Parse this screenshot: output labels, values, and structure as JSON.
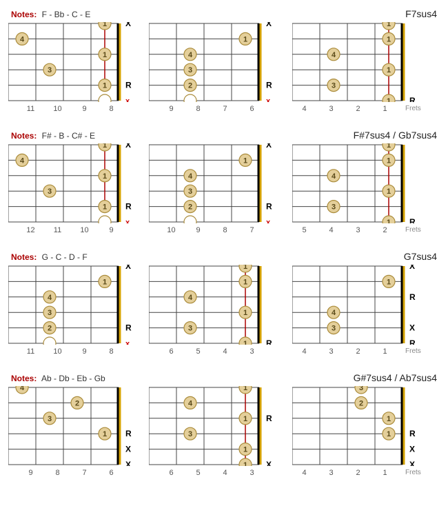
{
  "layout": {
    "grid": {
      "cols": 4,
      "strings": 6,
      "diagram_width": 160,
      "diagram_height": 112,
      "annotation_col_width": 22
    },
    "colors": {
      "line": "#444444",
      "nut": "#d4a200",
      "barre": "#aa0000",
      "dot_fill": "#e4cf9a",
      "dot_stroke": "#aa8b3a",
      "open_fill": "#ffffff",
      "text": "#333333",
      "mute_red": "#cc0000",
      "mute_black": "#000000",
      "root_black": "#000000"
    }
  },
  "frets_label": "Frets",
  "notes_prefix": "Notes:",
  "rows": [
    {
      "notes": "F - Bb - C - E",
      "chord": "F7sus4",
      "diagrams": [
        {
          "frets": [
            11,
            10,
            9,
            8
          ],
          "barre": {
            "fret": 8,
            "from": 1,
            "to": 5
          },
          "dots": [
            {
              "string": 1,
              "fret": 8,
              "label": "1"
            },
            {
              "string": 2,
              "fret": 11,
              "label": "4"
            },
            {
              "string": 3,
              "fret": 8,
              "label": "1"
            },
            {
              "string": 4,
              "fret": 10,
              "label": "3"
            },
            {
              "string": 5,
              "fret": 8,
              "label": "1"
            },
            {
              "string": 6,
              "fret": 8,
              "label": "",
              "open": true
            }
          ],
          "marks": [
            {
              "string": 1,
              "type": "X",
              "color": "black"
            },
            {
              "string": 5,
              "type": "R",
              "color": "black"
            },
            {
              "string": 6,
              "type": "x",
              "color": "red"
            }
          ]
        },
        {
          "frets": [
            9,
            8,
            7,
            6
          ],
          "dots": [
            {
              "string": 2,
              "fret": 6,
              "label": "1"
            },
            {
              "string": 3,
              "fret": 8,
              "label": "4"
            },
            {
              "string": 4,
              "fret": 8,
              "label": "3"
            },
            {
              "string": 5,
              "fret": 8,
              "label": "2"
            },
            {
              "string": 6,
              "fret": 8,
              "label": "",
              "open": true
            }
          ],
          "marks": [
            {
              "string": 1,
              "type": "X",
              "color": "black"
            },
            {
              "string": 5,
              "type": "R",
              "color": "black"
            },
            {
              "string": 6,
              "type": "x",
              "color": "red"
            }
          ]
        },
        {
          "frets": [
            4,
            3,
            2,
            1
          ],
          "barre": {
            "fret": 1,
            "from": 1,
            "to": 6
          },
          "dots": [
            {
              "string": 1,
              "fret": 1,
              "label": "1"
            },
            {
              "string": 2,
              "fret": 1,
              "label": "1"
            },
            {
              "string": 3,
              "fret": 3,
              "label": "4"
            },
            {
              "string": 4,
              "fret": 1,
              "label": "1"
            },
            {
              "string": 5,
              "fret": 3,
              "label": "3"
            },
            {
              "string": 6,
              "fret": 1,
              "label": "1"
            }
          ],
          "marks": [
            {
              "string": 6,
              "type": "R",
              "color": "black"
            }
          ],
          "show_frets_caption": true
        }
      ]
    },
    {
      "notes": "F# - B - C# - E",
      "chord": "F#7sus4 / Gb7sus4",
      "diagrams": [
        {
          "frets": [
            12,
            11,
            10,
            9
          ],
          "barre": {
            "fret": 9,
            "from": 1,
            "to": 5
          },
          "dots": [
            {
              "string": 1,
              "fret": 9,
              "label": "1"
            },
            {
              "string": 2,
              "fret": 12,
              "label": "4"
            },
            {
              "string": 3,
              "fret": 9,
              "label": "1"
            },
            {
              "string": 4,
              "fret": 11,
              "label": "3"
            },
            {
              "string": 5,
              "fret": 9,
              "label": "1"
            },
            {
              "string": 6,
              "fret": 9,
              "label": "",
              "open": true
            }
          ],
          "marks": [
            {
              "string": 1,
              "type": "X",
              "color": "black"
            },
            {
              "string": 5,
              "type": "R",
              "color": "black"
            },
            {
              "string": 6,
              "type": "x",
              "color": "red"
            }
          ]
        },
        {
          "frets": [
            10,
            9,
            8,
            7
          ],
          "dots": [
            {
              "string": 2,
              "fret": 7,
              "label": "1"
            },
            {
              "string": 3,
              "fret": 9,
              "label": "4"
            },
            {
              "string": 4,
              "fret": 9,
              "label": "3"
            },
            {
              "string": 5,
              "fret": 9,
              "label": "2"
            },
            {
              "string": 6,
              "fret": 9,
              "label": "",
              "open": true
            }
          ],
          "marks": [
            {
              "string": 1,
              "type": "X",
              "color": "black"
            },
            {
              "string": 5,
              "type": "R",
              "color": "black"
            },
            {
              "string": 6,
              "type": "x",
              "color": "red"
            }
          ]
        },
        {
          "frets": [
            5,
            4,
            3,
            2
          ],
          "barre": {
            "fret": 2,
            "from": 1,
            "to": 6
          },
          "dots": [
            {
              "string": 1,
              "fret": 2,
              "label": "1"
            },
            {
              "string": 2,
              "fret": 2,
              "label": "1"
            },
            {
              "string": 3,
              "fret": 4,
              "label": "4"
            },
            {
              "string": 4,
              "fret": 2,
              "label": "1"
            },
            {
              "string": 5,
              "fret": 4,
              "label": "3"
            },
            {
              "string": 6,
              "fret": 2,
              "label": "1"
            }
          ],
          "marks": [
            {
              "string": 6,
              "type": "R",
              "color": "black"
            }
          ],
          "show_frets_caption": true
        }
      ]
    },
    {
      "notes": "G - C - D - F",
      "chord": "G7sus4",
      "diagrams": [
        {
          "frets": [
            11,
            10,
            9,
            8
          ],
          "dots": [
            {
              "string": 2,
              "fret": 8,
              "label": "1"
            },
            {
              "string": 3,
              "fret": 10,
              "label": "4"
            },
            {
              "string": 4,
              "fret": 10,
              "label": "3"
            },
            {
              "string": 5,
              "fret": 10,
              "label": "2"
            },
            {
              "string": 6,
              "fret": 10,
              "label": "",
              "open": true
            }
          ],
          "marks": [
            {
              "string": 1,
              "type": "X",
              "color": "black"
            },
            {
              "string": 5,
              "type": "R",
              "color": "black"
            },
            {
              "string": 6,
              "type": "x",
              "color": "red"
            }
          ]
        },
        {
          "frets": [
            6,
            5,
            4,
            3
          ],
          "barre": {
            "fret": 3,
            "from": 1,
            "to": 6
          },
          "dots": [
            {
              "string": 1,
              "fret": 3,
              "label": "1"
            },
            {
              "string": 2,
              "fret": 3,
              "label": "1"
            },
            {
              "string": 3,
              "fret": 5,
              "label": "4"
            },
            {
              "string": 4,
              "fret": 3,
              "label": "1"
            },
            {
              "string": 5,
              "fret": 5,
              "label": "3"
            },
            {
              "string": 6,
              "fret": 3,
              "label": "1"
            }
          ],
          "marks": [
            {
              "string": 6,
              "type": "R",
              "color": "black"
            }
          ]
        },
        {
          "frets": [
            4,
            3,
            2,
            1
          ],
          "dots": [
            {
              "string": 2,
              "fret": 1,
              "label": "1"
            },
            {
              "string": 4,
              "fret": 3,
              "label": "4"
            },
            {
              "string": 5,
              "fret": 3,
              "label": "3"
            }
          ],
          "marks": [
            {
              "string": 1,
              "type": "X",
              "color": "black"
            },
            {
              "string": 3,
              "type": "R",
              "color": "black"
            },
            {
              "string": 5,
              "type": "X",
              "color": "black"
            },
            {
              "string": 6,
              "type": "R",
              "color": "black"
            }
          ],
          "show_frets_caption": true
        }
      ]
    },
    {
      "notes": "Ab - Db - Eb - Gb",
      "chord": "G#7sus4 / Ab7sus4",
      "diagrams": [
        {
          "frets": [
            9,
            8,
            7,
            6
          ],
          "dots": [
            {
              "string": 1,
              "fret": 9,
              "label": "4"
            },
            {
              "string": 2,
              "fret": 7,
              "label": "2"
            },
            {
              "string": 3,
              "fret": 8,
              "label": "3"
            },
            {
              "string": 4,
              "fret": 6,
              "label": "1"
            }
          ],
          "marks": [
            {
              "string": 4,
              "type": "R",
              "color": "black"
            },
            {
              "string": 5,
              "type": "X",
              "color": "black"
            },
            {
              "string": 6,
              "type": "X",
              "color": "black"
            }
          ]
        },
        {
          "frets": [
            6,
            5,
            4,
            3
          ],
          "barre": {
            "fret": 3,
            "from": 1,
            "to": 6
          },
          "dots": [
            {
              "string": 1,
              "fret": 3,
              "label": "1"
            },
            {
              "string": 2,
              "fret": 5,
              "label": "4"
            },
            {
              "string": 3,
              "fret": 3,
              "label": "1"
            },
            {
              "string": 4,
              "fret": 5,
              "label": "3"
            },
            {
              "string": 5,
              "fret": 3,
              "label": "1"
            },
            {
              "string": 6,
              "fret": 3,
              "label": "1"
            }
          ],
          "marks": [
            {
              "string": 3,
              "type": "R",
              "color": "black"
            },
            {
              "string": 6,
              "type": "X",
              "color": "black"
            }
          ]
        },
        {
          "frets": [
            4,
            3,
            2,
            1
          ],
          "dots": [
            {
              "string": 1,
              "fret": 2,
              "label": "3"
            },
            {
              "string": 2,
              "fret": 2,
              "label": "2"
            },
            {
              "string": 3,
              "fret": 1,
              "label": "1"
            },
            {
              "string": 4,
              "fret": 1,
              "label": "1"
            }
          ],
          "marks": [
            {
              "string": 4,
              "type": "R",
              "color": "black"
            },
            {
              "string": 5,
              "type": "X",
              "color": "black"
            },
            {
              "string": 6,
              "type": "X",
              "color": "black"
            }
          ],
          "show_frets_caption": true
        }
      ]
    }
  ]
}
